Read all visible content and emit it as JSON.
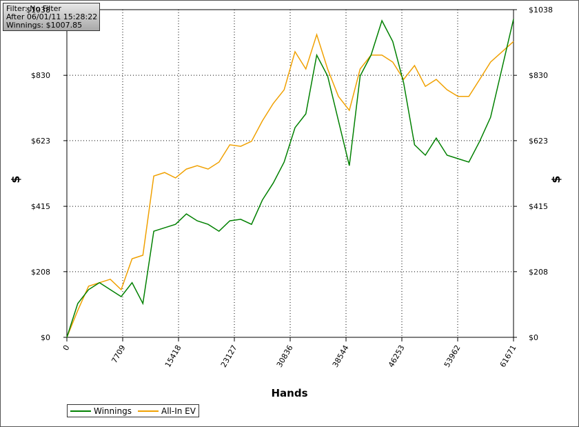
{
  "chart_data": {
    "type": "line",
    "xlabel": "Hands",
    "ylabel": "$",
    "annotations": [
      "Filter: No Filter",
      "After 06/01/11 15:28:22",
      "Winnings: $1007.85"
    ],
    "x": [
      0,
      1500,
      3000,
      4500,
      6000,
      7500,
      9000,
      10500,
      12000,
      13500,
      15000,
      16500,
      18000,
      19500,
      21000,
      22500,
      24000,
      25500,
      27000,
      28500,
      30000,
      31500,
      33000,
      34500,
      36000,
      37500,
      39000,
      40500,
      42000,
      43500,
      45000,
      46500,
      48000,
      49500,
      51000,
      52500,
      54000,
      55500,
      57000,
      58500,
      61671
    ],
    "series": [
      {
        "name": "Winnings",
        "color": "#008000",
        "values": [
          0,
          107,
          151,
          173,
          151,
          129,
          173,
          107,
          336,
          347,
          358,
          391,
          369,
          358,
          336,
          369,
          374,
          358,
          435,
          489,
          555,
          664,
          708,
          894,
          828,
          686,
          544,
          828,
          894,
          1003,
          937,
          806,
          610,
          577,
          631,
          577,
          566,
          555,
          621,
          697,
          1008
        ]
      },
      {
        "name": "All-In EV",
        "color": "#f0a000",
        "values": [
          0,
          85,
          162,
          173,
          184,
          151,
          249,
          260,
          511,
          522,
          505,
          533,
          544,
          533,
          555,
          610,
          605,
          621,
          686,
          741,
          784,
          905,
          850,
          959,
          850,
          763,
          719,
          850,
          894,
          894,
          872,
          817,
          861,
          795,
          817,
          784,
          763,
          763,
          817,
          872,
          937
        ]
      }
    ],
    "xlim": [
      0,
      61671
    ],
    "xticks": [
      0,
      7709,
      15418,
      23127,
      30836,
      38544,
      46253,
      53962,
      61671
    ],
    "ylim": [
      0,
      1038
    ],
    "yticks": [
      {
        "value": 0,
        "label": "$0"
      },
      {
        "value": 208,
        "label": "$208"
      },
      {
        "value": 415,
        "label": "$415"
      },
      {
        "value": 623,
        "label": "$623"
      },
      {
        "value": 830,
        "label": "$830"
      },
      {
        "value": 1038,
        "label": "$1038"
      }
    ],
    "grid": true
  }
}
